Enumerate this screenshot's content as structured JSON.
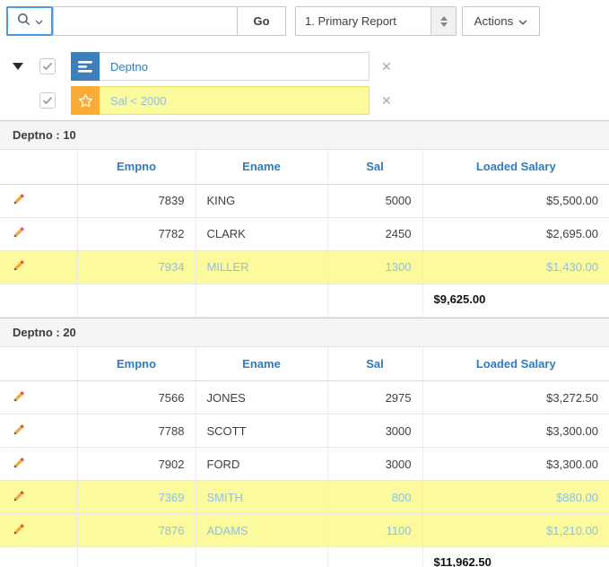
{
  "toolbar": {
    "go_label": "Go",
    "report_select_value": "1. Primary Report",
    "actions_label": "Actions"
  },
  "filters": {
    "rows": [
      {
        "kind": "control-break",
        "label": "Deptno",
        "checked": true
      },
      {
        "kind": "highlight",
        "label": "Sal < 2000",
        "checked": true
      }
    ]
  },
  "report": {
    "columns": [
      "",
      "Empno",
      "Ename",
      "Sal",
      "Loaded Salary"
    ],
    "groups": [
      {
        "break_label": "Deptno : 10",
        "rows": [
          {
            "cells": [
              "7839",
              "KING",
              "5000",
              "$5,500.00"
            ],
            "highlight": false
          },
          {
            "cells": [
              "7782",
              "CLARK",
              "2450",
              "$2,695.00"
            ],
            "highlight": false
          },
          {
            "cells": [
              "7934",
              "MILLER",
              "1300",
              "$1,430.00"
            ],
            "highlight": true
          }
        ],
        "sum_loaded_salary": "$9,625.00"
      },
      {
        "break_label": "Deptno : 20",
        "rows": [
          {
            "cells": [
              "7566",
              "JONES",
              "2975",
              "$3,272.50"
            ],
            "highlight": false
          },
          {
            "cells": [
              "7788",
              "SCOTT",
              "3000",
              "$3,300.00"
            ],
            "highlight": false
          },
          {
            "cells": [
              "7902",
              "FORD",
              "3000",
              "$3,300.00"
            ],
            "highlight": false
          },
          {
            "cells": [
              "7369",
              "SMITH",
              "800",
              "$880.00"
            ],
            "highlight": true
          },
          {
            "cells": [
              "7876",
              "ADAMS",
              "1100",
              "$1,210.00"
            ],
            "highlight": true
          }
        ],
        "sum_loaded_salary": "$11,962.50"
      }
    ]
  },
  "colors": {
    "link_blue": "#2d7cc1",
    "highlight_row_bg": "#fbfb9e",
    "highlight_text": "#8fbfe3",
    "break_icon_bg": "#3f7fb9",
    "highlight_icon_bg": "#fbac34",
    "focus_ring": "#4a97e4"
  }
}
